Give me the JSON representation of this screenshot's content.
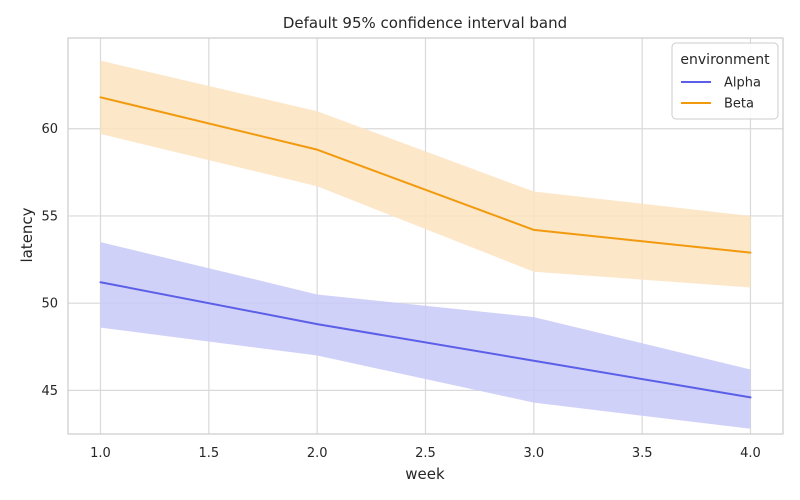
{
  "chart_data": {
    "type": "line",
    "title": "Default 95% confidence interval band",
    "xlabel": "week",
    "ylabel": "latency",
    "x": [
      1.0,
      2.0,
      3.0,
      4.0
    ],
    "xlim": [
      0.85,
      4.15
    ],
    "ylim": [
      42.5,
      65.2
    ],
    "xticks": [
      1.0,
      1.5,
      2.0,
      2.5,
      3.0,
      3.5,
      4.0
    ],
    "xtick_labels": [
      "1.0",
      "1.5",
      "2.0",
      "2.5",
      "3.0",
      "3.5",
      "4.0"
    ],
    "yticks": [
      45,
      50,
      55,
      60
    ],
    "ytick_labels": [
      "45",
      "50",
      "55",
      "60"
    ],
    "grid": true,
    "legend": {
      "title": "environment",
      "placement": "top-right"
    },
    "series": [
      {
        "name": "Alpha",
        "color": "#5b5fe8",
        "band_color": "#c8c9f7",
        "values": [
          51.2,
          48.8,
          46.7,
          44.6
        ],
        "ci_lower": [
          48.6,
          47.0,
          44.3,
          42.8
        ],
        "ci_upper": [
          53.5,
          50.5,
          49.2,
          46.2
        ]
      },
      {
        "name": "Beta",
        "color": "#f29a0e",
        "band_color": "#fde3bf",
        "values": [
          61.8,
          58.8,
          54.2,
          52.9
        ],
        "ci_lower": [
          59.7,
          56.7,
          51.8,
          50.9
        ],
        "ci_upper": [
          63.9,
          61.0,
          56.4,
          55.0
        ]
      }
    ]
  }
}
